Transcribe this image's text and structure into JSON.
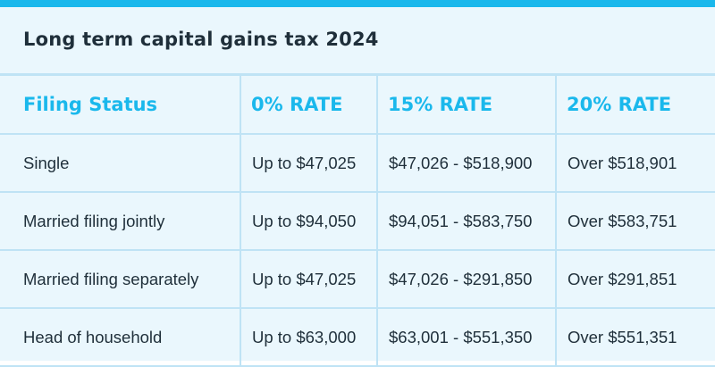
{
  "title": "Long term capital gains tax 2024",
  "colors": {
    "accent": "#1ab8ec",
    "background": "#eaf7fd",
    "border": "#bfe3f5",
    "text": "#1f2f3a"
  },
  "table": {
    "headers": [
      "Filing Status",
      "0% RATE",
      "15% RATE",
      "20% RATE"
    ],
    "rows": [
      [
        "Single",
        "Up to $47,025",
        "$47,026 - $518,900",
        "Over $518,901"
      ],
      [
        "Married filing jointly",
        "Up to $94,050",
        "$94,051 - $583,750",
        "Over $583,751"
      ],
      [
        "Married filing separately",
        "Up to $47,025",
        "$47,026 - $291,850",
        "Over $291,851"
      ],
      [
        "Head of household",
        "Up to $63,000",
        "$63,001 - $551,350",
        "Over $551,351"
      ]
    ]
  }
}
